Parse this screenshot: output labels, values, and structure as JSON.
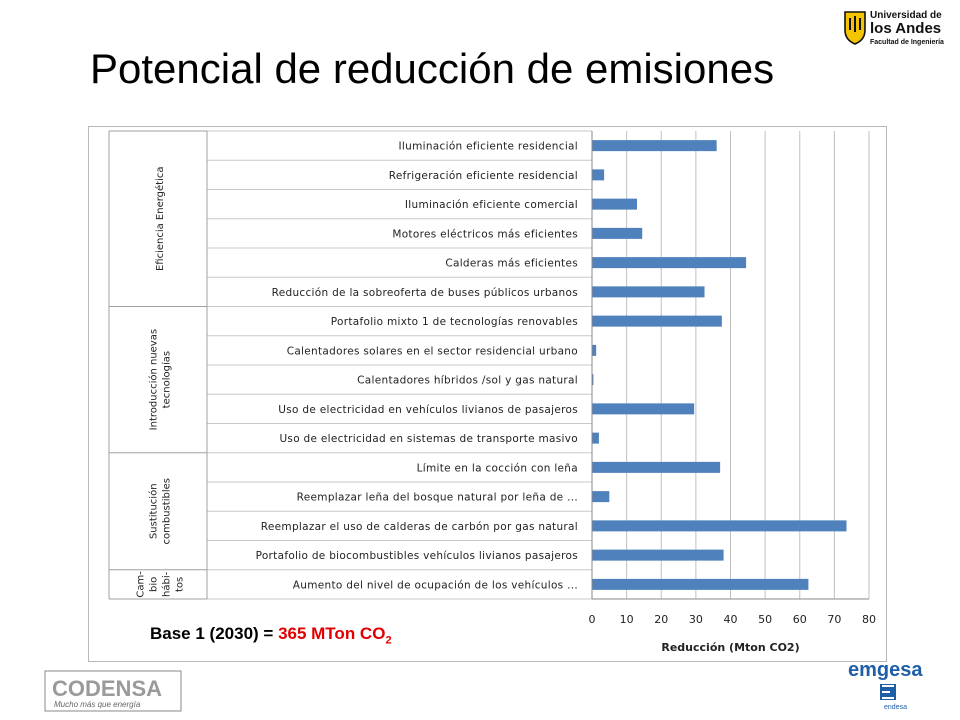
{
  "slide": {
    "title": "Potencial de reducción de emisiones"
  },
  "logos": {
    "uniandes": [
      "Universidad de",
      "los Andes",
      "Facultad de Ingeniería"
    ],
    "codensa": [
      "CODENSA",
      "Mucho más que energía"
    ],
    "emgesa": [
      "emgesa",
      "endesa"
    ]
  },
  "base_note": {
    "prefix": "Base 1 (2030) = ",
    "value": "365 MTon CO",
    "sub": "2"
  },
  "colors": {
    "bar": "#4f81bd",
    "highlight": "#e00000",
    "gridline": "#c0c0c0"
  },
  "chart_data": {
    "type": "bar",
    "orientation": "horizontal",
    "xlabel": "Reducción (Mton CO2)",
    "xlim": [
      0,
      80
    ],
    "xticks": [
      0,
      10,
      20,
      30,
      40,
      50,
      60,
      70,
      80
    ],
    "grid": true,
    "groups": [
      {
        "label_lines": [
          "Eficiencia Energética"
        ],
        "count": 6
      },
      {
        "label_lines": [
          "Introducción nuevas",
          "tecnologías"
        ],
        "count": 5
      },
      {
        "label_lines": [
          "Sustitución",
          "combustibles"
        ],
        "count": 4
      },
      {
        "label_lines": [
          "Cam-",
          "bio",
          "hábi-",
          "tos"
        ],
        "count": 1
      }
    ],
    "categories": [
      "Iluminación eficiente residencial",
      "Refrigeración eficiente residencial",
      "Iluminación eficiente comercial",
      "Motores eléctricos más eficientes",
      "Calderas más eficientes",
      "Reducción de la sobreoferta de buses públicos urbanos",
      "Portafolio mixto 1 de tecnologías renovables",
      "Calentadores solares en el sector residencial urbano",
      "Calentadores híbridos /sol y gas natural",
      "Uso de electricidad en vehículos livianos de pasajeros",
      "Uso de electricidad en sistemas de transporte masivo",
      "Límite en la cocción con leña",
      "Reemplazar leña del bosque natural por leña de ...",
      "Reemplazar el uso de calderas de carbón por gas natural",
      "Portafolio de biocombustibles vehículos livianos pasajeros",
      "Aumento del nivel de ocupación de los vehículos ..."
    ],
    "values": [
      36,
      3.5,
      13,
      14.5,
      44.5,
      32.5,
      37.5,
      1.2,
      0.4,
      29.5,
      2,
      37,
      5,
      73.5,
      38,
      62.5
    ]
  }
}
